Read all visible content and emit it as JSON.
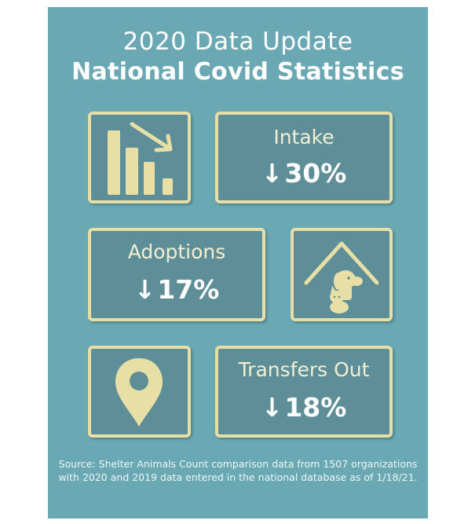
{
  "title": {
    "line1": "2020 Data Update",
    "line2": "National Covid Statistics"
  },
  "stats": {
    "intake": {
      "label": "Intake",
      "arrow": "↓",
      "value": "30%"
    },
    "adoptions": {
      "label": "Adoptions",
      "arrow": "↓",
      "value": "17%"
    },
    "transfers_out": {
      "label": "Transfers Out",
      "arrow": "↓",
      "value": "18%"
    }
  },
  "icons": {
    "box1": "declining-bar-chart-icon",
    "box2": "dog-and-cat-under-roof-icon",
    "box3": "map-pin-icon"
  },
  "source": "Source: Shelter Animals Count comparison data from 1507 organizations with 2020 and 2019 data entered in the national database as of 1/18/21.",
  "colors": {
    "background": "#6aa9b4",
    "box_fill": "#5e8f98",
    "box_border": "#e7dfa6",
    "icon": "#e7dfa6",
    "text": "#ffffff"
  }
}
